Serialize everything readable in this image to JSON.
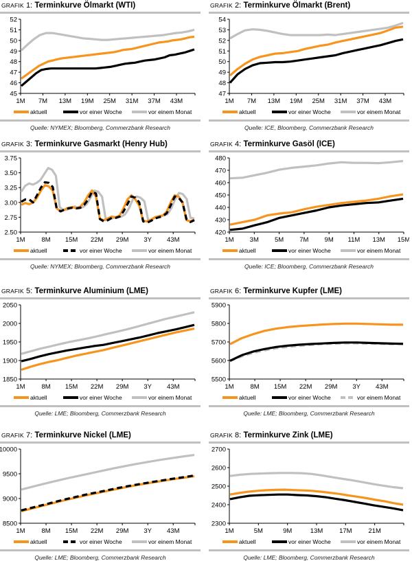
{
  "colors": {
    "aktuell": "#f7941d",
    "woche": "#000000",
    "monat": "#c0c0c0",
    "separator": "#c0c0c0"
  },
  "legend": {
    "aktuell": "aktuell",
    "woche": "vor einer Woche",
    "monat": "vor einem Monat"
  },
  "chart_data": [
    {
      "type": "line",
      "grafik": "GRAFIK",
      "number": "1:",
      "title": "Terminkurve Ölmarkt (WTI)",
      "source": "Quelle: NYMEX; Bloomberg, Commerzbank Research",
      "ylim": [
        45,
        52
      ],
      "yticks": [
        "45",
        "46",
        "47",
        "48",
        "49",
        "50",
        "51",
        "52"
      ],
      "ystep": 1,
      "xticks": [
        "1M",
        "7M",
        "13M",
        "19M",
        "25M",
        "31M",
        "37M",
        "43M"
      ],
      "n": 48,
      "tick_every": 6,
      "woche_style": "solid",
      "monat_style": "solid",
      "series": [
        {
          "name": "aktuell",
          "values": [
            46.4,
            46.7,
            47.0,
            47.3,
            47.6,
            47.8,
            48.0,
            48.1,
            48.2,
            48.3,
            48.35,
            48.4,
            48.45,
            48.5,
            48.55,
            48.6,
            48.65,
            48.7,
            48.75,
            48.8,
            48.85,
            48.9,
            49.0,
            49.1,
            49.15,
            49.2,
            49.3,
            49.4,
            49.5,
            49.6,
            49.7,
            49.8,
            49.85,
            49.9,
            50.0,
            50.05,
            50.1,
            50.2,
            50.3,
            50.35
          ]
        },
        {
          "name": "vor einer Woche",
          "values": [
            45.7,
            46.1,
            46.5,
            46.9,
            47.2,
            47.3,
            47.35,
            47.35,
            47.35,
            47.35,
            47.35,
            47.35,
            47.35,
            47.35,
            47.35,
            47.35,
            47.4,
            47.45,
            47.5,
            47.6,
            47.7,
            47.8,
            47.85,
            47.9,
            48.0,
            48.1,
            48.15,
            48.2,
            48.3,
            48.4,
            48.6,
            48.65,
            48.75,
            48.85,
            49.0,
            49.15
          ]
        },
        {
          "name": "vor einem Monat",
          "values": [
            49.05,
            49.6,
            50.1,
            50.5,
            50.7,
            50.7,
            50.6,
            50.5,
            50.4,
            50.3,
            50.2,
            50.15,
            50.1,
            50.05,
            50.05,
            50.1,
            50.15,
            50.2,
            50.25,
            50.3,
            50.35,
            50.4,
            50.45,
            50.5,
            50.6,
            50.7,
            50.75,
            50.85,
            51.0
          ]
        }
      ]
    },
    {
      "type": "line",
      "grafik": "GRAFIK",
      "number": "2:",
      "title": "Terminkurve Ölmarkt (Brent)",
      "source": "Quelle: ICE, Bloomberg, Commerzbank Research",
      "ylim": [
        47,
        54
      ],
      "yticks": [
        "47",
        "48",
        "49",
        "50",
        "51",
        "52",
        "53",
        "54"
      ],
      "ystep": 1,
      "xticks": [
        "1M",
        "7M",
        "13M",
        "19M",
        "25M",
        "31M",
        "37M",
        "43M"
      ],
      "n": 48,
      "tick_every": 6,
      "woche_style": "solid",
      "monat_style": "solid",
      "series": [
        {
          "name": "aktuell",
          "values": [
            48.7,
            49.3,
            49.8,
            50.2,
            50.45,
            50.6,
            50.75,
            50.8,
            50.9,
            51.0,
            51.2,
            51.35,
            51.5,
            51.6,
            51.8,
            51.95,
            52.1,
            52.25,
            52.4,
            52.55,
            52.7,
            52.95,
            53.2,
            53.3
          ]
        },
        {
          "name": "vor einer Woche",
          "values": [
            48.0,
            48.8,
            49.3,
            49.65,
            49.85,
            49.9,
            49.95,
            49.95,
            50.0,
            50.1,
            50.2,
            50.3,
            50.4,
            50.5,
            50.6,
            50.8,
            50.95,
            51.1,
            51.25,
            51.4,
            51.55,
            51.75,
            51.95,
            52.1
          ]
        },
        {
          "name": "vor einem Monat",
          "values": [
            52.2,
            52.6,
            52.95,
            53.05,
            53.0,
            52.9,
            52.75,
            52.6,
            52.5,
            52.5,
            52.5,
            52.5,
            52.5,
            52.55,
            52.5,
            52.6,
            52.7,
            52.8,
            52.9,
            53.0,
            53.1,
            53.2,
            53.4,
            53.65
          ]
        }
      ]
    },
    {
      "type": "line",
      "grafik": "GRAFIK",
      "number": "3:",
      "title": "Terminkurve Gasmarkt (Henry Hub)",
      "source": "Quelle: NYMEX; Bloomberg, Commerzbank Research",
      "ylim": [
        2.5,
        3.75
      ],
      "yticks": [
        "2.50",
        "2.75",
        "3.00",
        "3.25",
        "3.50",
        "3.75"
      ],
      "ystep": 0.25,
      "xticks": [
        "1M",
        "8M",
        "15M",
        "22M",
        "29M",
        "3Y",
        "43M"
      ],
      "n": 49,
      "tick_every": 7,
      "woche_style": "dashed",
      "monat_style": "solid",
      "series": [
        {
          "name": "aktuell",
          "values": [
            2.96,
            2.99,
            2.97,
            3.0,
            3.08,
            3.2,
            3.29,
            3.27,
            3.2,
            2.9,
            2.85,
            2.88,
            2.91,
            2.92,
            2.9,
            2.93,
            3.0,
            3.12,
            3.2,
            3.1,
            2.72,
            2.7,
            2.73,
            2.76,
            2.75,
            2.78,
            2.9,
            3.05,
            3.12,
            3.05,
            2.95,
            2.69,
            2.68,
            2.71,
            2.75,
            2.77,
            2.78,
            2.85,
            3.0,
            3.12,
            3.1,
            3.0,
            2.7,
            2.68,
            2.71
          ]
        },
        {
          "name": "vor einer Woche",
          "values": [
            3.01,
            3.05,
            3.05,
            3.0,
            3.12,
            3.25,
            3.34,
            3.33,
            3.26,
            2.9,
            2.85,
            2.88,
            2.9,
            2.91,
            2.9,
            2.91,
            2.96,
            3.05,
            3.18,
            3.15,
            2.72,
            2.68,
            2.7,
            2.74,
            2.74,
            2.76,
            2.85,
            2.97,
            3.1,
            3.08,
            3.0,
            2.68,
            2.66,
            2.69,
            2.73,
            2.75,
            2.77,
            2.82,
            2.95,
            3.1,
            3.08,
            3.0,
            2.72,
            2.67,
            2.7
          ]
        },
        {
          "name": "vor einem Monat",
          "values": [
            3.18,
            3.28,
            3.32,
            3.3,
            3.33,
            3.38,
            3.48,
            3.58,
            3.55,
            3.45,
            2.92,
            2.87,
            2.88,
            2.92,
            2.93,
            2.9,
            2.92,
            2.97,
            3.08,
            3.2,
            3.18,
            3.1,
            2.7,
            2.72,
            2.74,
            2.76,
            2.76,
            2.8,
            2.9,
            3.05,
            3.1,
            3.08,
            3.02,
            2.7,
            2.71,
            2.75,
            2.77,
            2.78,
            2.8,
            2.9,
            3.05,
            3.16,
            3.14,
            3.06,
            2.74,
            2.73
          ]
        }
      ]
    },
    {
      "type": "line",
      "grafik": "GRAFIK",
      "number": "4:",
      "title": "Terminkurve Gasöl (ICE)",
      "source": "Quelle: ICE; Bloomberg, Commerzbank Research",
      "ylim": [
        420,
        480
      ],
      "yticks": [
        "420",
        "430",
        "440",
        "450",
        "460",
        "470",
        "480"
      ],
      "ystep": 10,
      "xticks": [
        "1M",
        "3M",
        "5M",
        "7M",
        "9M",
        "11M",
        "13M",
        "15M"
      ],
      "n": 15,
      "tick_every": 2,
      "woche_style": "solid",
      "monat_style": "solid",
      "series": [
        {
          "name": "aktuell",
          "values": [
            426,
            428,
            430,
            433.5,
            435,
            436,
            438.5,
            440.5,
            442,
            443.5,
            444.5,
            445.5,
            447,
            449,
            450.5
          ]
        },
        {
          "name": "vor einer Woche",
          "values": [
            421.8,
            422.8,
            425.5,
            428,
            431.5,
            433.5,
            435.5,
            437.5,
            440,
            441.5,
            442.5,
            443.5,
            444,
            445.5,
            447
          ]
        },
        {
          "name": "vor einem Monat",
          "values": [
            463.5,
            464,
            466,
            468,
            470.5,
            472,
            473,
            474,
            475.5,
            476.5,
            476,
            476,
            475.8,
            476.5,
            477.5
          ]
        }
      ]
    },
    {
      "type": "line",
      "grafik": "GRAFIK",
      "number": "5:",
      "title": "Terminkurve Aluminium (LME)",
      "source": "Quelle: LME; Bloomberg, Commerzbank Research",
      "ylim": [
        1850,
        2050
      ],
      "yticks": [
        "1850",
        "1900",
        "1950",
        "2000",
        "2050"
      ],
      "ystep": 50,
      "xticks": [
        "1M",
        "8M",
        "15M",
        "22M",
        "29M",
        "3Y",
        "43M"
      ],
      "n": 49,
      "tick_every": 7,
      "woche_style": "solid",
      "monat_style": "solid",
      "series": [
        {
          "name": "aktuell",
          "values": [
            1875,
            1883,
            1890,
            1896,
            1901,
            1907,
            1913,
            1918,
            1923,
            1928,
            1934,
            1940,
            1946,
            1952,
            1958,
            1964,
            1970,
            1976,
            1981,
            1986
          ]
        },
        {
          "name": "vor einer Woche",
          "values": [
            1898,
            1904,
            1911,
            1917,
            1922,
            1927,
            1931,
            1935,
            1939,
            1942,
            1947,
            1952,
            1957,
            1962,
            1968,
            1974,
            1979,
            1984,
            1990,
            1996
          ]
        },
        {
          "name": "vor einem Monat",
          "values": [
            1918,
            1925,
            1932,
            1938,
            1944,
            1950,
            1955,
            1960,
            1966,
            1972,
            1978,
            1984,
            1991,
            1998,
            2005,
            2012,
            2018,
            2024,
            2030
          ]
        }
      ]
    },
    {
      "type": "line",
      "grafik": "GRAFIK",
      "number": "6:",
      "title": "Terminkurve Kupfer (LME)",
      "source": "Quelle: LME; Bloomberg, Commerzbank Research",
      "ylim": [
        5500,
        5900
      ],
      "yticks": [
        "5500",
        "5600",
        "5700",
        "5800",
        "5900"
      ],
      "ystep": 100,
      "xticks": [
        "1M",
        "8M",
        "15M",
        "22M",
        "29M",
        "3Y",
        "43M"
      ],
      "n": 49,
      "tick_every": 7,
      "woche_style": "solid",
      "monat_style": "dashed",
      "series": [
        {
          "name": "aktuell",
          "values": [
            5688,
            5720,
            5742,
            5760,
            5772,
            5780,
            5786,
            5790,
            5794,
            5797,
            5799,
            5799,
            5797,
            5795,
            5793,
            5793
          ]
        },
        {
          "name": "vor einer Woche",
          "values": [
            5598,
            5628,
            5648,
            5662,
            5673,
            5680,
            5685,
            5689,
            5692,
            5695,
            5697,
            5697,
            5695,
            5693,
            5691,
            5690
          ]
        },
        {
          "name": "vor einem Monat",
          "values": [
            5598,
            5622,
            5641,
            5655,
            5666,
            5673,
            5679,
            5684,
            5688,
            5691,
            5693,
            5693,
            5691,
            5690,
            5688,
            5688
          ]
        }
      ]
    },
    {
      "type": "line",
      "grafik": "GRAFIK",
      "number": "7:",
      "title": "Terminkurve Nickel (LME)",
      "source": "Quelle: LME; Bloomberg, Commerzbank Research",
      "ylim": [
        8500,
        10000
      ],
      "yticks": [
        "8500",
        "9000",
        "9500",
        "10000"
      ],
      "ystep": 500,
      "xticks": [
        "1M",
        "8M",
        "15M",
        "22M",
        "29M",
        "3Y",
        "43M"
      ],
      "n": 49,
      "tick_every": 7,
      "woche_style": "dashed",
      "monat_style": "solid",
      "series": [
        {
          "name": "aktuell",
          "values": [
            8745,
            8800,
            8855,
            8910,
            8965,
            9015,
            9065,
            9110,
            9155,
            9200,
            9245,
            9285,
            9320,
            9355,
            9390,
            9420,
            9450
          ]
        },
        {
          "name": "vor einer Woche",
          "values": [
            8760,
            8815,
            8870,
            8925,
            8980,
            9030,
            9080,
            9125,
            9170,
            9215,
            9255,
            9295,
            9330,
            9365,
            9400,
            9430,
            9465
          ]
        },
        {
          "name": "vor einem Monat",
          "values": [
            9180,
            9240,
            9300,
            9355,
            9410,
            9460,
            9510,
            9560,
            9610,
            9655,
            9700,
            9740,
            9780,
            9815,
            9850,
            9880
          ]
        }
      ]
    },
    {
      "type": "line",
      "grafik": "GRAFIK",
      "number": "8:",
      "title": "Terminkurve Zink (LME)",
      "source": "Quelle: LME; Bloomberg, Commerzbank Research",
      "ylim": [
        2300,
        2700
      ],
      "yticks": [
        "2300",
        "2400",
        "2500",
        "2600",
        "2700"
      ],
      "ystep": 100,
      "xticks": [
        "1M",
        "5M",
        "9M",
        "13M",
        "17M",
        "21M"
      ],
      "n": 25,
      "tick_every": 4,
      "woche_style": "solid",
      "monat_style": "solid",
      "series": [
        {
          "name": "aktuell",
          "values": [
            2455,
            2463,
            2470,
            2475,
            2478,
            2480,
            2481,
            2479,
            2477,
            2475,
            2470,
            2464,
            2458,
            2450,
            2443,
            2435,
            2426,
            2418,
            2408,
            2400
          ]
        },
        {
          "name": "vor einer Woche",
          "values": [
            2430,
            2440,
            2448,
            2451,
            2453,
            2455,
            2455,
            2452,
            2450,
            2446,
            2440,
            2432,
            2424,
            2415,
            2406,
            2396,
            2388,
            2380,
            2370
          ]
        },
        {
          "name": "vor einem Monat",
          "values": [
            2555,
            2562,
            2566,
            2568,
            2570,
            2571,
            2571,
            2570,
            2566,
            2558,
            2549,
            2540,
            2532,
            2522,
            2512,
            2503,
            2495,
            2489
          ]
        }
      ]
    }
  ]
}
